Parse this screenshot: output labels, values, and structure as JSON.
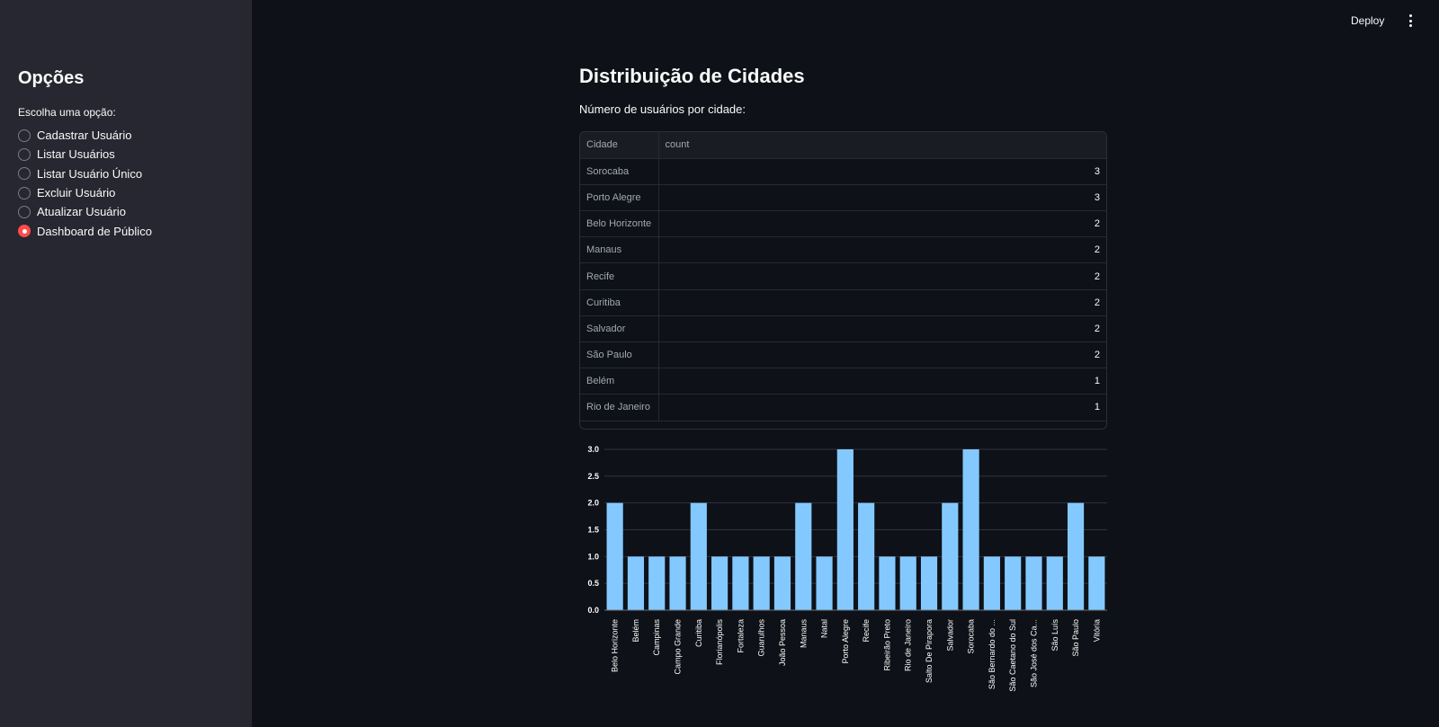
{
  "header": {
    "deploy_label": "Deploy",
    "menu_icon": "kebab-menu-icon"
  },
  "sidebar": {
    "title": "Opções",
    "radio_label": "Escolha uma opção:",
    "options": [
      {
        "label": "Cadastrar Usuário",
        "selected": false
      },
      {
        "label": "Listar Usuários",
        "selected": false
      },
      {
        "label": "Listar Usuário Único",
        "selected": false
      },
      {
        "label": "Excluir Usuário",
        "selected": false
      },
      {
        "label": "Atualizar Usuário",
        "selected": false
      },
      {
        "label": "Dashboard de Público",
        "selected": true
      }
    ]
  },
  "main": {
    "title": "Distribuição de Cidades",
    "subtitle": "Número de usuários por cidade:",
    "table": {
      "columns": [
        "Cidade",
        "count"
      ],
      "rows": [
        [
          "Sorocaba",
          "3"
        ],
        [
          "Porto Alegre",
          "3"
        ],
        [
          "Belo Horizonte",
          "2"
        ],
        [
          "Manaus",
          "2"
        ],
        [
          "Recife",
          "2"
        ],
        [
          "Curitiba",
          "2"
        ],
        [
          "Salvador",
          "2"
        ],
        [
          "São Paulo",
          "2"
        ],
        [
          "Belém",
          "1"
        ],
        [
          "Rio de Janeiro",
          "1"
        ]
      ]
    }
  },
  "colors": {
    "accent": "#ff4b4b",
    "bar": "#83c9ff",
    "background": "#0e1117",
    "sidebar": "#262730"
  },
  "chart_data": {
    "type": "bar",
    "categories": [
      "Belo Horizonte",
      "Belém",
      "Campinas",
      "Campo Grande",
      "Curitiba",
      "Florianópolis",
      "Fortaleza",
      "Guarulhos",
      "João Pessoa",
      "Manaus",
      "Natal",
      "Porto Alegre",
      "Recife",
      "Ribeirão Preto",
      "Rio de Janeiro",
      "Salto De Pirapora",
      "Salvador",
      "Sorocaba",
      "São Bernardo do ...",
      "São Caetano do Sul",
      "São José dos Ca...",
      "São Luís",
      "São Paulo",
      "Vitória"
    ],
    "values": [
      2,
      1,
      1,
      1,
      2,
      1,
      1,
      1,
      1,
      2,
      1,
      3,
      2,
      1,
      1,
      1,
      2,
      3,
      1,
      1,
      1,
      1,
      2,
      1
    ],
    "yticks": [
      "0.0",
      "0.5",
      "1.0",
      "1.5",
      "2.0",
      "2.5",
      "3.0"
    ],
    "ylim": [
      0,
      3
    ],
    "grid": true
  }
}
